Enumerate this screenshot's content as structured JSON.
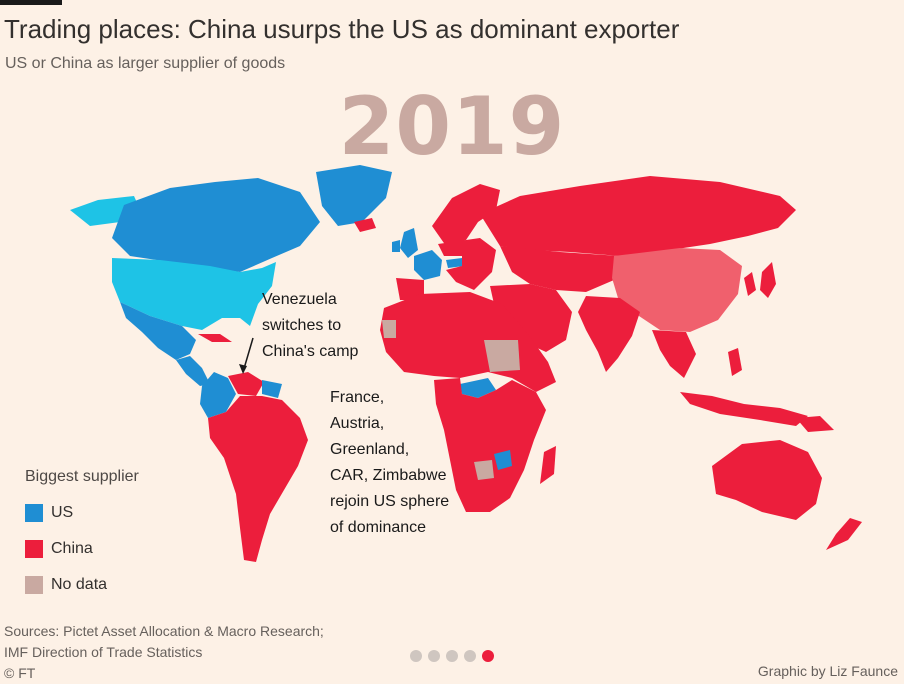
{
  "title": "Trading places: China usurps the US as dominant exporter",
  "subtitle": "US or China as larger supplier of goods",
  "year": "2019",
  "annotations": {
    "venezuela": [
      "Venezuela",
      "switches to",
      "China's camp"
    ],
    "rejoin": [
      "France,",
      "Austria,",
      "Greenland,",
      "CAR, Zimbabwe",
      "rejoin US sphere",
      "of dominance"
    ]
  },
  "legend": {
    "title": "Biggest supplier",
    "items": [
      {
        "label": "US",
        "color": "#1f8ed3"
      },
      {
        "label": "China",
        "color": "#ec1e3c"
      },
      {
        "label": "No data",
        "color": "#c9a9a1"
      }
    ]
  },
  "sources": [
    "Sources: Pictet Asset Allocation & Macro Research;",
    "IMF Direction of Trade Statistics",
    "© FT"
  ],
  "credit": "Graphic by Liz Faunce",
  "pagination": {
    "total": 5,
    "active": 5
  },
  "colors": {
    "us": "#1f8ed3",
    "us_highlight": "#1ec3e6",
    "china": "#ec1e3c",
    "china_self": "#f0606d",
    "no_data": "#c9a9a1",
    "background": "#fdf1e6"
  }
}
